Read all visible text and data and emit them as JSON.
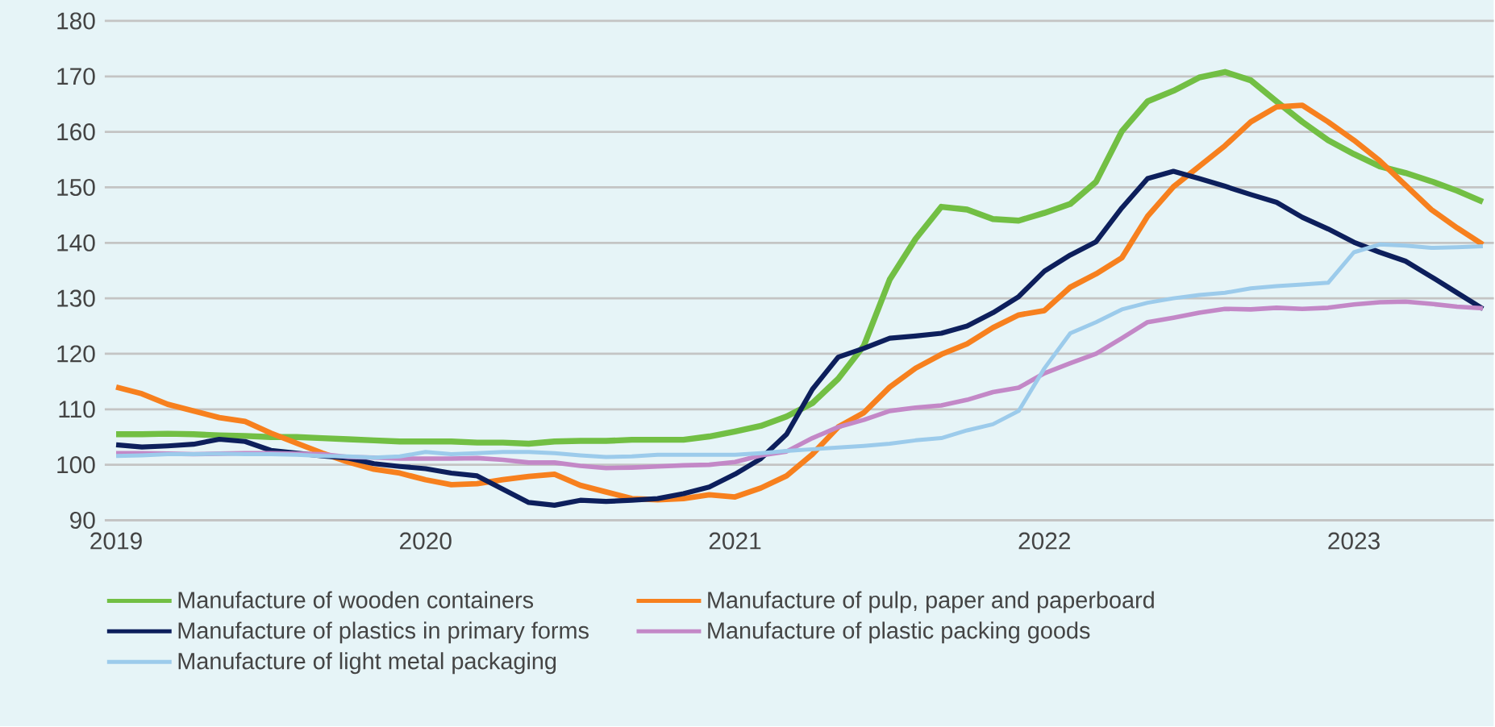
{
  "chart_data": {
    "type": "line",
    "x": [
      "2019-01",
      "2019-02",
      "2019-03",
      "2019-04",
      "2019-05",
      "2019-06",
      "2019-07",
      "2019-08",
      "2019-09",
      "2019-10",
      "2019-11",
      "2019-12",
      "2020-01",
      "2020-02",
      "2020-03",
      "2020-04",
      "2020-05",
      "2020-06",
      "2020-07",
      "2020-08",
      "2020-09",
      "2020-10",
      "2020-11",
      "2020-12",
      "2021-01",
      "2021-02",
      "2021-03",
      "2021-04",
      "2021-05",
      "2021-06",
      "2021-07",
      "2021-08",
      "2021-09",
      "2021-10",
      "2021-11",
      "2021-12",
      "2022-01",
      "2022-02",
      "2022-03",
      "2022-04",
      "2022-05",
      "2022-06",
      "2022-07",
      "2022-08",
      "2022-09",
      "2022-10",
      "2022-11",
      "2022-12",
      "2023-01",
      "2023-02",
      "2023-03",
      "2023-04",
      "2023-05",
      "2023-06"
    ],
    "series": [
      {
        "name": "Manufacture of wooden containers",
        "color": "#72bf44",
        "values": [
          105.5,
          105.5,
          105.6,
          105.5,
          105.3,
          105.2,
          105.0,
          105.0,
          104.8,
          104.6,
          104.4,
          104.2,
          104.2,
          104.2,
          104.0,
          104.0,
          103.8,
          104.2,
          104.3,
          104.3,
          104.5,
          104.5,
          104.5,
          105.1,
          106.0,
          107.0,
          108.7,
          111.1,
          115.5,
          121.5,
          133.4,
          140.7,
          146.5,
          146.0,
          144.3,
          144.0,
          145.4,
          147.0,
          151.0,
          160.1,
          165.5,
          167.4,
          169.8,
          170.8,
          169.3,
          165.5,
          161.8,
          158.5,
          156.0,
          153.8,
          152.6,
          151.1,
          149.4,
          147.4
        ]
      },
      {
        "name": "Manufacture of pulp, paper and paperboard",
        "color": "#f7801e",
        "values": [
          114.0,
          112.8,
          110.9,
          109.7,
          108.5,
          107.8,
          105.7,
          103.9,
          102.1,
          100.5,
          99.2,
          98.5,
          97.3,
          96.4,
          96.6,
          97.3,
          97.9,
          98.3,
          96.3,
          95.1,
          93.9,
          93.7,
          93.9,
          94.6,
          94.2,
          95.8,
          98.0,
          101.9,
          106.8,
          109.4,
          114.0,
          117.4,
          119.9,
          121.8,
          124.7,
          127.0,
          127.8,
          132.0,
          134.4,
          137.3,
          144.8,
          150.1,
          153.8,
          157.5,
          161.8,
          164.5,
          164.8,
          161.8,
          158.5,
          154.8,
          150.4,
          146.0,
          142.7,
          139.7
        ]
      },
      {
        "name": "Manufacture of plastics in primary forms",
        "color": "#0d1f5c",
        "values": [
          103.6,
          103.2,
          103.4,
          103.7,
          104.6,
          104.2,
          102.6,
          102.1,
          101.6,
          101.2,
          100.2,
          99.7,
          99.3,
          98.5,
          98.0,
          95.6,
          93.2,
          92.7,
          93.6,
          93.4,
          93.6,
          93.9,
          94.8,
          96.0,
          98.3,
          101.1,
          105.5,
          113.6,
          119.4,
          121.0,
          122.8,
          123.2,
          123.7,
          125.0,
          127.4,
          130.3,
          134.9,
          137.8,
          140.2,
          146.3,
          151.6,
          152.9,
          151.6,
          150.2,
          148.7,
          147.3,
          144.6,
          142.5,
          140.1,
          138.3,
          136.7,
          133.9,
          131.0,
          128.1
        ]
      },
      {
        "name": "Manufacture of plastic packing goods",
        "color": "#c388c7",
        "values": [
          102.1,
          102.1,
          102.0,
          101.9,
          102.0,
          102.1,
          102.1,
          102.0,
          101.9,
          101.4,
          101.3,
          101.1,
          101.1,
          101.1,
          101.2,
          100.9,
          100.4,
          100.4,
          99.8,
          99.4,
          99.5,
          99.7,
          99.9,
          100.0,
          100.5,
          101.7,
          102.4,
          104.8,
          106.8,
          108.1,
          109.7,
          110.3,
          110.7,
          111.7,
          113.1,
          113.9,
          116.5,
          118.3,
          120.0,
          122.8,
          125.7,
          126.5,
          127.4,
          128.1,
          128.0,
          128.3,
          128.1,
          128.3,
          128.9,
          129.3,
          129.4,
          129.0,
          128.5,
          128.2
        ]
      },
      {
        "name": "Manufacture of light metal packaging",
        "color": "#9ccbeb",
        "values": [
          101.6,
          101.7,
          101.9,
          101.9,
          102.0,
          101.9,
          101.9,
          101.8,
          101.6,
          101.5,
          101.3,
          101.5,
          102.3,
          101.9,
          102.1,
          102.3,
          102.3,
          102.1,
          101.7,
          101.4,
          101.5,
          101.8,
          101.8,
          101.8,
          101.8,
          102.1,
          102.5,
          102.8,
          103.1,
          103.4,
          103.8,
          104.4,
          104.8,
          106.2,
          107.3,
          109.7,
          117.4,
          123.7,
          125.7,
          128.0,
          129.2,
          130.0,
          130.6,
          131.0,
          131.8,
          132.2,
          132.5,
          132.8,
          138.3,
          139.7,
          139.5,
          139.1,
          139.2,
          139.4
        ]
      }
    ],
    "xlim": [
      "2018-12-18",
      "2023-06-14"
    ],
    "xticks": [
      {
        "value": "2019-01",
        "label": "2019"
      },
      {
        "value": "2020-01",
        "label": "2020"
      },
      {
        "value": "2021-01",
        "label": "2021"
      },
      {
        "value": "2022-01",
        "label": "2022"
      },
      {
        "value": "2023-01",
        "label": "2023"
      }
    ],
    "ylim": [
      90,
      180
    ],
    "yticks": [
      90,
      100,
      110,
      120,
      130,
      140,
      150,
      160,
      170,
      180
    ],
    "grid": "y",
    "legend": "bottom",
    "line_style": "solid"
  }
}
